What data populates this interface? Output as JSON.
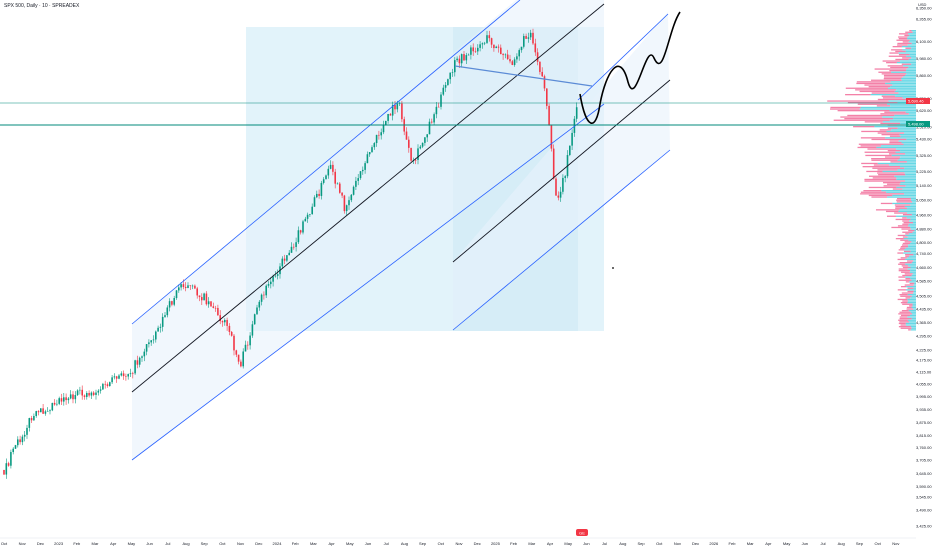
{
  "header": {
    "title": "SPX 500, Daily · 10 · SPREADEX"
  },
  "chart_data": {
    "type": "candlestick",
    "y_unit": "USD",
    "y_scale": "log",
    "ylim": [
      3400,
      6420
    ],
    "y_ticks": [
      "6,350.00",
      "6,265.00",
      "6,100.00",
      "5,980.00",
      "5,860.00",
      "5,700.00",
      "5,620.00",
      "5,510.00",
      "5,430.00",
      "5,325.00",
      "5,225.00",
      "5,140.00",
      "5,050.00",
      "4,960.00",
      "4,880.00",
      "4,800.00",
      "4,740.00",
      "4,660.00",
      "4,585.00",
      "4,505.00",
      "4,435.00",
      "4,365.00",
      "4,295.00",
      "4,225.00",
      "4,175.00",
      "4,115.00",
      "4,055.00",
      "3,995.00",
      "3,935.00",
      "3,875.00",
      "3,815.00",
      "3,760.00",
      "3,705.00",
      "3,645.00",
      "3,590.00",
      "3,545.00",
      "3,490.00",
      "3,425.00"
    ],
    "x_ticks": [
      "Oct",
      "Nov",
      "Dec",
      "2023",
      "Feb",
      "Mar",
      "Apr",
      "May",
      "Jun",
      "Jul",
      "Aug",
      "Sep",
      "Oct",
      "Nov",
      "Dec",
      "2024",
      "Feb",
      "Mar",
      "Apr",
      "May",
      "Jun",
      "Jul",
      "Aug",
      "Sep",
      "Oct",
      "Nov",
      "Dec",
      "2025",
      "Feb",
      "Mar",
      "Apr",
      "May",
      "Jun",
      "Jul",
      "Aug",
      "Sep",
      "Oct",
      "Nov",
      "Dec",
      "2026",
      "Feb",
      "Mar",
      "Apr",
      "May",
      "Jun",
      "Jul",
      "Aug",
      "Sep",
      "Oct",
      "Nov"
    ],
    "price_labels": [
      {
        "value": "5,690.46",
        "color": "#f23645"
      },
      {
        "value": "5,498.00",
        "color": "#089981"
      }
    ],
    "bottom_marker": "GE",
    "colors": {
      "up": "#089981",
      "down": "#f23645",
      "channel": "#2962ff",
      "median": "#131722",
      "level": "#00897b",
      "trendline": "#5b8bd6",
      "profile_a": "#f06292",
      "profile_b": "#26c6da"
    }
  }
}
